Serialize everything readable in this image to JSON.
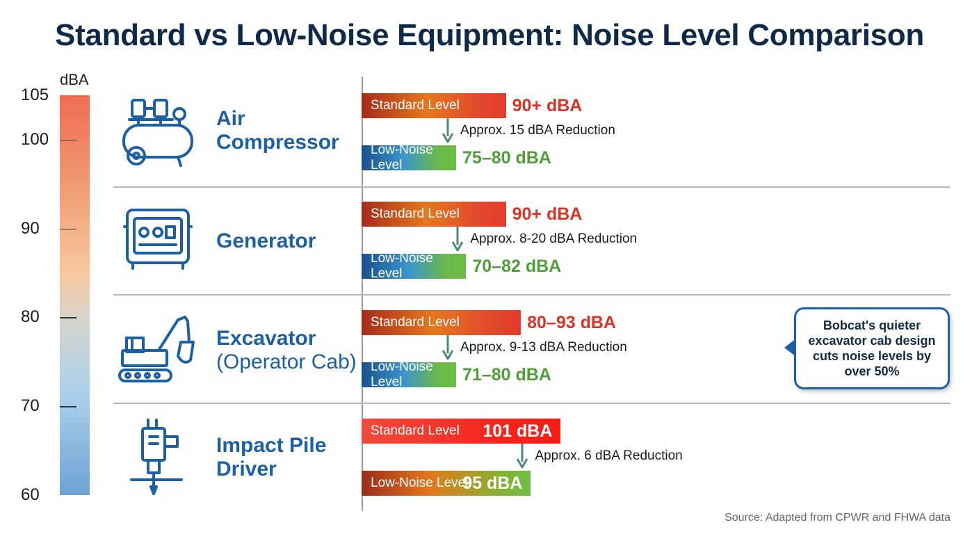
{
  "colors": {
    "title": "#0f2a48",
    "equipment_name": "#1d5fa3",
    "standard_value": "#d93425",
    "low_noise_value": "#4f9e3a",
    "reduction_arrow": "#4a8a7a"
  },
  "chart_data": {
    "type": "bar",
    "title": "Standard vs Low-Noise Equipment: Noise Level Comparison",
    "scale": {
      "unit": "dBA",
      "ticks": [
        105,
        100,
        90,
        80,
        70,
        60
      ],
      "range": [
        60,
        105
      ],
      "gradient": "red at top to blue at bottom"
    },
    "series": [
      {
        "name": "Standard Level",
        "values": [
          90,
          90,
          93,
          101
        ]
      },
      {
        "name": "Low-Noise Level",
        "values": [
          80,
          82,
          80,
          95
        ]
      }
    ],
    "equipment": [
      {
        "name": "Air Compressor",
        "subname": "",
        "icon": "air-compressor-icon",
        "standard": {
          "label": "Standard Level",
          "value_text": "90+ dBA"
        },
        "low": {
          "label": "Low-Noise Level",
          "value_text": "75–80 dBA"
        },
        "reduction": "Approx. 15 dBA Reduction"
      },
      {
        "name": "Generator",
        "subname": "",
        "icon": "generator-icon",
        "standard": {
          "label": "Standard Level",
          "value_text": "90+ dBA"
        },
        "low": {
          "label": "Low-Noise Level",
          "value_text": "70–82 dBA"
        },
        "reduction": "Approx. 8-20 dBA Reduction"
      },
      {
        "name": "Excavator",
        "subname": "(Operator Cab)",
        "icon": "excavator-icon",
        "standard": {
          "label": "Standard Level",
          "value_text": "80–93 dBA"
        },
        "low": {
          "label": "Low-Noise Level",
          "value_text": "71–80 dBA"
        },
        "reduction": "Approx. 9-13 dBA Reduction"
      },
      {
        "name": "Impact Pile Driver",
        "subname": "",
        "icon": "pile-driver-icon",
        "standard": {
          "label": "Standard Level",
          "value_text": "101 dBA"
        },
        "low": {
          "label": "Low-Noise Level",
          "value_text": "95 dBA"
        },
        "reduction": "Approx. 6 dBA Reduction"
      }
    ],
    "callout": "Bobcat's quieter excavator cab design cuts noise levels by over 50%",
    "source": "Source: Adapted from CPWR and FHWA data"
  }
}
